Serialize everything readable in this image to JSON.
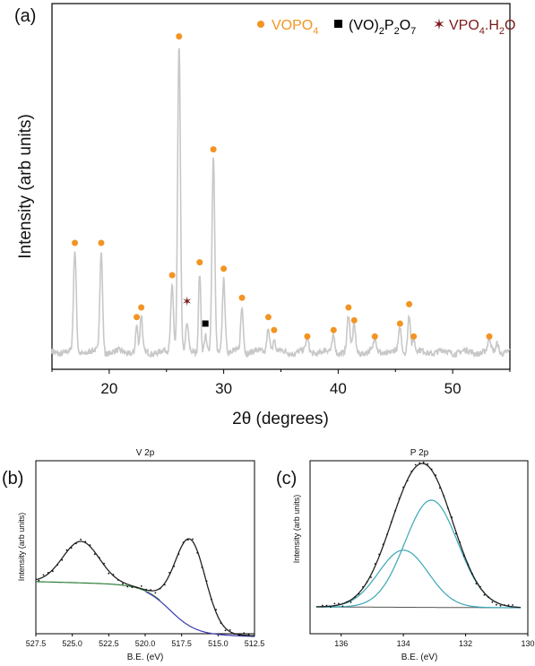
{
  "chart_data": [
    {
      "type": "line",
      "panel_label": "(a)",
      "xlabel": "2θ (degrees)",
      "ylabel": "Intensity (arb units)",
      "xlim": [
        15,
        55
      ],
      "x_ticks": [
        20,
        30,
        40,
        50
      ],
      "y_ticks_shown": false,
      "line_color": "#c8c8c8",
      "legend": {
        "position": "top-right",
        "entries": [
          {
            "marker": "circle",
            "color": "#f39422",
            "label": "VOPO",
            "sub": "4",
            "label_color": "#f39422"
          },
          {
            "marker": "square",
            "color": "#000000",
            "label_parts": [
              [
                "(VO)",
                ""
              ],
              [
                "2",
                "sub"
              ],
              [
                "P",
                ""
              ],
              [
                "2",
                "sub"
              ],
              [
                "O",
                ""
              ],
              [
                "7",
                "sub"
              ]
            ],
            "label_color": "#000000"
          },
          {
            "marker": "star",
            "color": "#7b1a1a",
            "label_parts": [
              [
                "VPO",
                ""
              ],
              [
                "4",
                "sub"
              ],
              [
                ".H",
                ""
              ],
              [
                "2",
                "sub"
              ],
              [
                "O",
                ""
              ]
            ],
            "label_color": "#7b1a1a"
          }
        ]
      },
      "peaks": [
        {
          "x": 17.0,
          "h": 0.31,
          "w": 0.12
        },
        {
          "x": 19.3,
          "h": 0.31,
          "w": 0.12
        },
        {
          "x": 22.4,
          "h": 0.08,
          "w": 0.1
        },
        {
          "x": 22.8,
          "h": 0.11,
          "w": 0.1
        },
        {
          "x": 25.5,
          "h": 0.21,
          "w": 0.12
        },
        {
          "x": 26.1,
          "h": 0.95,
          "w": 0.12
        },
        {
          "x": 26.8,
          "h": 0.08,
          "w": 0.12
        },
        {
          "x": 27.9,
          "h": 0.25,
          "w": 0.1
        },
        {
          "x": 28.4,
          "h": 0.05,
          "w": 0.1
        },
        {
          "x": 29.1,
          "h": 0.6,
          "w": 0.12
        },
        {
          "x": 30.0,
          "h": 0.23,
          "w": 0.12
        },
        {
          "x": 31.6,
          "h": 0.14,
          "w": 0.12
        },
        {
          "x": 33.9,
          "h": 0.08,
          "w": 0.12
        },
        {
          "x": 34.4,
          "h": 0.04,
          "w": 0.1
        },
        {
          "x": 37.3,
          "h": 0.04,
          "w": 0.12
        },
        {
          "x": 39.6,
          "h": 0.05,
          "w": 0.12
        },
        {
          "x": 40.9,
          "h": 0.11,
          "w": 0.12
        },
        {
          "x": 41.4,
          "h": 0.08,
          "w": 0.12
        },
        {
          "x": 43.2,
          "h": 0.04,
          "w": 0.12
        },
        {
          "x": 45.4,
          "h": 0.07,
          "w": 0.12
        },
        {
          "x": 46.2,
          "h": 0.12,
          "w": 0.12
        },
        {
          "x": 46.6,
          "h": 0.04,
          "w": 0.1
        },
        {
          "x": 53.2,
          "h": 0.04,
          "w": 0.12
        },
        {
          "x": 53.9,
          "h": 0.03,
          "w": 0.12
        }
      ],
      "markers": [
        {
          "type": "circle",
          "x": 17.0,
          "y": 0.35
        },
        {
          "type": "circle",
          "x": 19.3,
          "y": 0.35
        },
        {
          "type": "circle",
          "x": 22.4,
          "y": 0.12
        },
        {
          "type": "circle",
          "x": 22.8,
          "y": 0.15
        },
        {
          "type": "circle",
          "x": 25.5,
          "y": 0.25
        },
        {
          "type": "circle",
          "x": 26.1,
          "y": 0.99
        },
        {
          "type": "star",
          "x": 26.8,
          "y": 0.17
        },
        {
          "type": "circle",
          "x": 27.9,
          "y": 0.29
        },
        {
          "type": "square",
          "x": 28.4,
          "y": 0.1
        },
        {
          "type": "circle",
          "x": 29.1,
          "y": 0.64
        },
        {
          "type": "circle",
          "x": 30.0,
          "y": 0.27
        },
        {
          "type": "circle",
          "x": 31.6,
          "y": 0.18
        },
        {
          "type": "circle",
          "x": 33.9,
          "y": 0.12
        },
        {
          "type": "circle",
          "x": 34.4,
          "y": 0.08
        },
        {
          "type": "circle",
          "x": 37.3,
          "y": 0.06
        },
        {
          "type": "circle",
          "x": 39.6,
          "y": 0.08
        },
        {
          "type": "circle",
          "x": 40.9,
          "y": 0.15
        },
        {
          "type": "circle",
          "x": 41.4,
          "y": 0.11
        },
        {
          "type": "circle",
          "x": 43.2,
          "y": 0.06
        },
        {
          "type": "circle",
          "x": 45.4,
          "y": 0.1
        },
        {
          "type": "circle",
          "x": 46.2,
          "y": 0.16
        },
        {
          "type": "circle",
          "x": 46.6,
          "y": 0.06
        },
        {
          "type": "circle",
          "x": 53.2,
          "y": 0.06
        }
      ],
      "colors": {
        "circle": "#f39422",
        "square": "#000000",
        "star": "#7b1a1a"
      }
    },
    {
      "type": "line",
      "panel_label": "(b)",
      "title": "V 2p",
      "xlabel": "B.E. (eV)",
      "ylabel": "Intensity (arb units)",
      "xlim": [
        527.5,
        512.5
      ],
      "x_reversed": true,
      "x_tick_labels": [
        "527.5",
        "525.0",
        "522.5",
        "520.0",
        "517.5",
        "515.0",
        "512.5"
      ],
      "x_tick_values": [
        527.5,
        525.0,
        522.5,
        520.0,
        517.5,
        515.0,
        512.5
      ],
      "ylim": [
        0,
        1
      ],
      "series": [
        {
          "role": "fit_envelope",
          "color": "#222222",
          "peaks": [
            {
              "x": 524.4,
              "h": 0.24,
              "w": 1.25
            },
            {
              "x": 516.9,
              "h": 0.5,
              "w": 1.05
            }
          ]
        },
        {
          "role": "background",
          "colors": [
            "#2f7f3a",
            "#3a3ab0"
          ]
        },
        {
          "role": "data_points",
          "color": "#111111"
        }
      ]
    },
    {
      "type": "line",
      "panel_label": "(c)",
      "title": "P 2p",
      "xlabel": "B.E. (eV)",
      "ylabel": "Intensity (arb units)",
      "xlim": [
        137,
        130
      ],
      "x_reversed": true,
      "x_tick_labels": [
        "136",
        "134",
        "132",
        "130"
      ],
      "x_tick_values": [
        136,
        134,
        132,
        130
      ],
      "ylim": [
        0,
        1
      ],
      "series": [
        {
          "role": "fit_envelope",
          "color": "#222222"
        },
        {
          "role": "component",
          "color": "#3aa7b4",
          "peak": {
            "x": 133.1,
            "h": 0.62,
            "w": 0.85
          }
        },
        {
          "role": "component",
          "color": "#3aa7b4",
          "peak": {
            "x": 134.0,
            "h": 0.33,
            "w": 0.8
          }
        },
        {
          "role": "background",
          "color": "#555555"
        },
        {
          "role": "data_points",
          "color": "#111111"
        }
      ]
    }
  ]
}
